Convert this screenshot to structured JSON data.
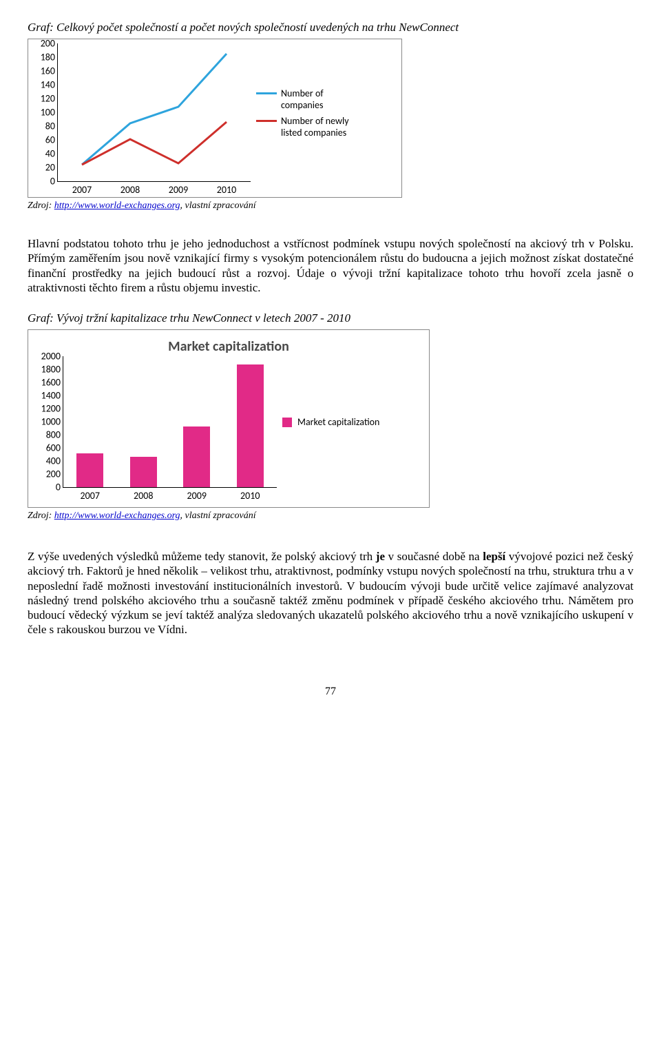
{
  "chart1": {
    "caption": "Graf: Celkový počet společností a počet nových společností uvedených na trhu NewConnect",
    "type": "line",
    "categories": [
      "2007",
      "2008",
      "2009",
      "2010"
    ],
    "series": [
      {
        "label": "Number of companies",
        "color": "#2ea4dd",
        "values": [
          24,
          84,
          108,
          185
        ]
      },
      {
        "label": "Number of newly listed companies",
        "color": "#ce2f2b",
        "values": [
          24,
          61,
          26,
          86
        ]
      }
    ],
    "ylim": [
      0,
      200
    ],
    "ytick_step": 20,
    "grid_color": "#d9d9d9",
    "background_color": "#ffffff",
    "line_width": 3,
    "axis_fontsize": 14
  },
  "source1_prefix": "Zdroj: ",
  "source1_link_text": "http://www.world-exchanges.org",
  "source1_suffix": ", vlastní zpracování",
  "paragraph1": "Hlavní podstatou tohoto trhu je jeho jednoduchost a vstřícnost podmínek vstupu nových společností na akciový trh v Polsku. Přímým zaměřením jsou nově vznikající firmy s vysokým potencionálem růstu do budoucna a jejich možnost získat dostatečné finanční prostředky na jejich budoucí růst a rozvoj. Údaje o vývoji tržní kapitalizace tohoto trhu hovoří zcela jasně o atraktivnosti těchto firem a růstu objemu investic.",
  "chart2": {
    "caption": "Graf: Vývoj tržní kapitalizace trhu NewConnect v letech 2007 - 2010",
    "title": "Market capitalization",
    "type": "bar",
    "categories": [
      "2007",
      "2008",
      "2009",
      "2010"
    ],
    "values": [
      520,
      460,
      930,
      1870
    ],
    "bar_color": "#e12a87",
    "ylim": [
      0,
      2000
    ],
    "ytick_step": 200,
    "background_color": "#ffffff",
    "bar_width": 0.5,
    "legend_label": "Market capitalization",
    "axis_fontsize": 14
  },
  "source2_prefix": "Zdroj: ",
  "source2_link_text": "http://www.world-exchanges.org",
  "source2_suffix": ", vlastní zpracování",
  "paragraph2_part1": "Z výše uvedených výsledků můžeme tedy stanovit, že polský akciový trh ",
  "paragraph2_bold1": "je",
  "paragraph2_part2": " v současné době na ",
  "paragraph2_bold2": "lepší",
  "paragraph2_part3": " vývojové pozici než český akciový trh. Faktorů je hned několik – velikost trhu, atraktivnost, podmínky vstupu nových společností na trhu, struktura trhu a v neposlední řadě možnosti investování institucionálních investorů. V budoucím vývoji bude určitě velice zajímavé analyzovat následný trend polského akciového trhu a současně taktéž změnu podmínek v případě českého akciového trhu. Námětem pro budoucí vědecký výzkum se jeví taktéž analýza sledovaných ukazatelů polského akciového trhu a nově vznikajícího uskupení v čele s rakouskou burzou ve Vídni.",
  "page_number": "77"
}
